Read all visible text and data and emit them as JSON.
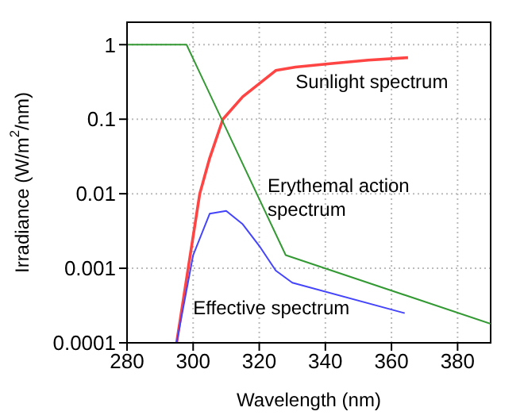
{
  "chart_data": {
    "type": "line",
    "xlabel": "Wavelength (nm)",
    "ylabel": "Irradiance (W/m$^{2}$/nm)",
    "log": "y",
    "grid": true,
    "marker": "none",
    "line_style": "solid",
    "xlim": [
      280,
      390
    ],
    "xticks": [
      280,
      300,
      320,
      340,
      360,
      380
    ],
    "ylim": [
      0.0001,
      2
    ],
    "yticks": [
      0.0001,
      0.001,
      0.01,
      0.1,
      1
    ],
    "series": [
      {
        "name": "Sunlight spectrum",
        "color": "#ff4444",
        "x": [
          295,
          302,
          305,
          309,
          315,
          320,
          325,
          331,
          342,
          353,
          365
        ],
        "values": [
          0.0001,
          0.01,
          0.03,
          0.1,
          0.2,
          0.3,
          0.45,
          0.5,
          0.56,
          0.62,
          0.67
        ]
      },
      {
        "name": "Erythemal action spectrum",
        "color": "#339933",
        "x": [
          280,
          298,
          328,
          390
        ],
        "values": [
          1,
          1,
          0.0015,
          0.00018
        ]
      },
      {
        "name": "Effective spectrum",
        "color": "#4444ff",
        "x": [
          295,
          300,
          305,
          310,
          315,
          320,
          325,
          330,
          364
        ],
        "values": [
          0.0001,
          0.0015,
          0.0054,
          0.0059,
          0.0039,
          0.002,
          0.00093,
          0.00064,
          0.00025
        ]
      }
    ]
  }
}
